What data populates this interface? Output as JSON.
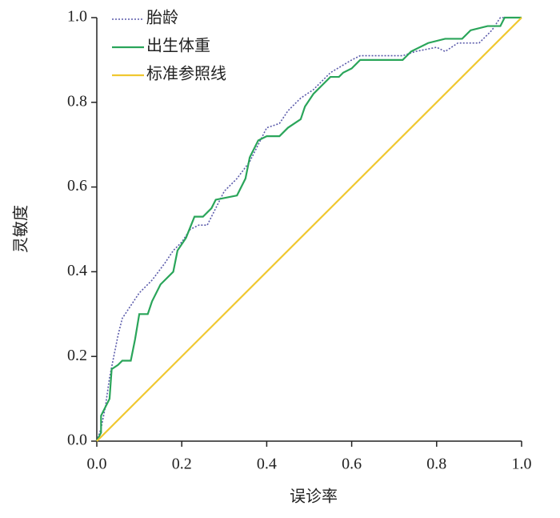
{
  "chart_data": {
    "type": "line",
    "xlabel": "误诊率",
    "ylabel": "灵敏度",
    "xlim": [
      0,
      1
    ],
    "ylim": [
      0,
      1
    ],
    "xticks": [
      {
        "value": 0,
        "label": "0.0"
      },
      0.2,
      0.4,
      0.6,
      0.8,
      {
        "value": 1,
        "label": "1.0"
      }
    ],
    "yticks": [
      {
        "value": 0,
        "label": "0.0"
      },
      0.2,
      0.4,
      0.6,
      0.8,
      {
        "value": 1,
        "label": "1.0"
      }
    ],
    "legend": "upper left",
    "series": [
      {
        "name": "胎龄",
        "color": "#5a5aaa",
        "style": "dotted",
        "x": [
          0,
          0.01,
          0.02,
          0.03,
          0.04,
          0.05,
          0.06,
          0.08,
          0.1,
          0.13,
          0.16,
          0.18,
          0.2,
          0.22,
          0.24,
          0.26,
          0.28,
          0.3,
          0.33,
          0.36,
          0.38,
          0.4,
          0.43,
          0.45,
          0.48,
          0.51,
          0.55,
          0.6,
          0.62,
          0.72,
          0.75,
          0.8,
          0.82,
          0.85,
          0.9,
          0.93,
          0.95,
          1
        ],
        "values": [
          0,
          0.03,
          0.08,
          0.15,
          0.2,
          0.25,
          0.29,
          0.32,
          0.35,
          0.38,
          0.42,
          0.45,
          0.47,
          0.5,
          0.51,
          0.51,
          0.55,
          0.59,
          0.62,
          0.66,
          0.7,
          0.74,
          0.75,
          0.78,
          0.81,
          0.83,
          0.87,
          0.9,
          0.91,
          0.91,
          0.92,
          0.93,
          0.92,
          0.94,
          0.94,
          0.97,
          1,
          1
        ]
      },
      {
        "name": "出生体重",
        "color": "#2aa55a",
        "style": "solid",
        "x": [
          0,
          0.01,
          0.01,
          0.03,
          0.035,
          0.05,
          0.06,
          0.08,
          0.09,
          0.1,
          0.12,
          0.13,
          0.15,
          0.16,
          0.18,
          0.19,
          0.21,
          0.23,
          0.25,
          0.27,
          0.28,
          0.33,
          0.35,
          0.36,
          0.38,
          0.4,
          0.43,
          0.45,
          0.48,
          0.49,
          0.51,
          0.53,
          0.55,
          0.57,
          0.58,
          0.6,
          0.62,
          0.72,
          0.74,
          0.78,
          0.82,
          0.86,
          0.88,
          0.92,
          0.95,
          0.96,
          1
        ],
        "values": [
          0,
          0.02,
          0.06,
          0.1,
          0.17,
          0.18,
          0.19,
          0.19,
          0.24,
          0.3,
          0.3,
          0.33,
          0.37,
          0.38,
          0.4,
          0.45,
          0.48,
          0.53,
          0.53,
          0.55,
          0.57,
          0.58,
          0.62,
          0.67,
          0.71,
          0.72,
          0.72,
          0.74,
          0.76,
          0.79,
          0.82,
          0.84,
          0.86,
          0.86,
          0.87,
          0.88,
          0.9,
          0.9,
          0.92,
          0.94,
          0.95,
          0.95,
          0.97,
          0.98,
          0.98,
          1,
          1
        ]
      },
      {
        "name": "标准参照线",
        "color": "#f0c830",
        "style": "solid",
        "x": [
          0,
          1
        ],
        "values": [
          0,
          1
        ]
      }
    ]
  }
}
